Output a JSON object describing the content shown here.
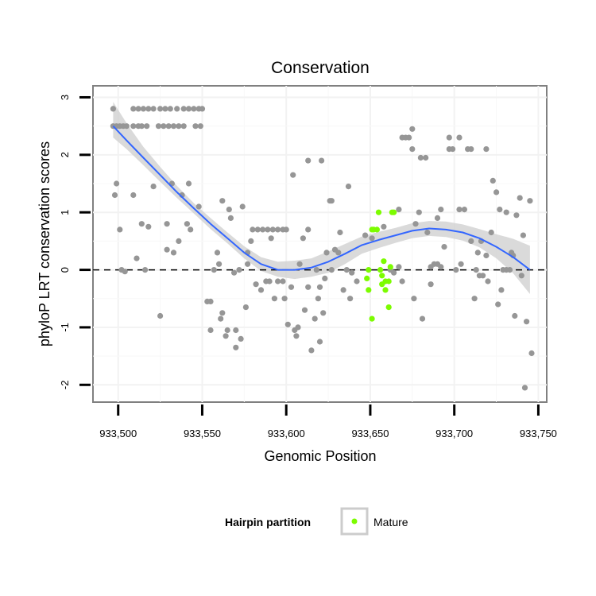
{
  "chart_data": {
    "type": "scatter",
    "title": "Conservation",
    "xlabel": "Genomic Position",
    "ylabel": "phyloP LRT conservation scores",
    "xlim": [
      933485,
      933755
    ],
    "ylim": [
      -2.3,
      3.2
    ],
    "x_ticks": [
      933500,
      933550,
      933600,
      933650,
      933700,
      933750
    ],
    "x_tick_labels": [
      "933,500",
      "933,550",
      "933,600",
      "933,650",
      "933,700",
      "933,750"
    ],
    "y_ticks": [
      -2,
      -1,
      0,
      1,
      2,
      3
    ],
    "y_tick_labels": [
      "-2",
      "-1",
      "0",
      "1",
      "2",
      "3"
    ],
    "reference_line": {
      "y": 0,
      "style": "dashed"
    },
    "legend": {
      "title": "Hairpin partition",
      "entries": [
        "Mature"
      ]
    },
    "colors": {
      "other": "#969696",
      "mature": "#7cfc00",
      "smooth": "#3366ff",
      "band": "#d3d3d3"
    },
    "series": [
      {
        "name": "Other",
        "color": "#969696",
        "points": [
          [
            933497,
            2.8
          ],
          [
            933497,
            2.5
          ],
          [
            933499,
            2.5
          ],
          [
            933501,
            2.5
          ],
          [
            933503,
            2.5
          ],
          [
            933505,
            2.5
          ],
          [
            933509,
            2.5
          ],
          [
            933512,
            2.5
          ],
          [
            933514,
            2.5
          ],
          [
            933517,
            2.5
          ],
          [
            933524,
            2.5
          ],
          [
            933527,
            2.5
          ],
          [
            933530,
            2.5
          ],
          [
            933533,
            2.5
          ],
          [
            933536,
            2.5
          ],
          [
            933539,
            2.5
          ],
          [
            933546,
            2.5
          ],
          [
            933549,
            2.5
          ],
          [
            933509,
            2.8
          ],
          [
            933512,
            2.8
          ],
          [
            933515,
            2.8
          ],
          [
            933518,
            2.8
          ],
          [
            933521,
            2.8
          ],
          [
            933525,
            2.8
          ],
          [
            933528,
            2.8
          ],
          [
            933531,
            2.8
          ],
          [
            933535,
            2.8
          ],
          [
            933539,
            2.8
          ],
          [
            933542,
            2.8
          ],
          [
            933545,
            2.8
          ],
          [
            933548,
            2.8
          ],
          [
            933550,
            2.8
          ],
          [
            933499,
            1.5
          ],
          [
            933498,
            1.3
          ],
          [
            933501,
            0.7
          ],
          [
            933502,
            0.0
          ],
          [
            933504,
            -0.03
          ],
          [
            933509,
            1.3
          ],
          [
            933511,
            0.2
          ],
          [
            933514,
            0.8
          ],
          [
            933516,
            0.0
          ],
          [
            933518,
            0.75
          ],
          [
            933521,
            1.45
          ],
          [
            933525,
            -0.8
          ],
          [
            933529,
            0.35
          ],
          [
            933529,
            0.8
          ],
          [
            933532,
            1.5
          ],
          [
            933533,
            0.3
          ],
          [
            933536,
            0.5
          ],
          [
            933538,
            1.3
          ],
          [
            933541,
            0.8
          ],
          [
            933542,
            1.5
          ],
          [
            933543,
            0.7
          ],
          [
            933548,
            1.1
          ],
          [
            933553,
            -0.55
          ],
          [
            933555,
            -0.55
          ],
          [
            933555,
            -1.05
          ],
          [
            933557,
            0.0
          ],
          [
            933559,
            0.3
          ],
          [
            933560,
            0.1
          ],
          [
            933561,
            -0.85
          ],
          [
            933562,
            1.2
          ],
          [
            933562,
            -0.75
          ],
          [
            933565,
            -1.05
          ],
          [
            933564,
            -1.15
          ],
          [
            933566,
            1.05
          ],
          [
            933567,
            0.9
          ],
          [
            933569,
            -0.05
          ],
          [
            933570,
            -1.35
          ],
          [
            933570,
            -1.05
          ],
          [
            933572,
            0.0
          ],
          [
            933574,
            1.1
          ],
          [
            933573,
            -1.2
          ],
          [
            933576,
            -0.65
          ],
          [
            933577,
            0.1
          ],
          [
            933577,
            0.3
          ],
          [
            933579,
            0.5
          ],
          [
            933580,
            0.7
          ],
          [
            933583,
            0.7
          ],
          [
            933586,
            0.7
          ],
          [
            933589,
            0.7
          ],
          [
            933592,
            0.7
          ],
          [
            933595,
            0.7
          ],
          [
            933598,
            0.7
          ],
          [
            933600,
            0.7
          ],
          [
            933591,
            0.55
          ],
          [
            933582,
            -0.25
          ],
          [
            933585,
            -0.35
          ],
          [
            933588,
            -0.2
          ],
          [
            933590,
            -0.2
          ],
          [
            933593,
            -0.5
          ],
          [
            933595,
            -0.2
          ],
          [
            933598,
            -0.2
          ],
          [
            933599,
            -0.5
          ],
          [
            933601,
            -0.95
          ],
          [
            933603,
            -0.3
          ],
          [
            933604,
            1.65
          ],
          [
            933605,
            -1.05
          ],
          [
            933606,
            -1.15
          ],
          [
            933607,
            -1.0
          ],
          [
            933608,
            0.1
          ],
          [
            933610,
            0.55
          ],
          [
            933611,
            -0.7
          ],
          [
            933613,
            0.7
          ],
          [
            933613,
            1.9
          ],
          [
            933613,
            -0.3
          ],
          [
            933615,
            -1.4
          ],
          [
            933617,
            -0.85
          ],
          [
            933618,
            0.0
          ],
          [
            933619,
            -0.5
          ],
          [
            933620,
            -1.25
          ],
          [
            933621,
            1.9
          ],
          [
            933620,
            -0.3
          ],
          [
            933622,
            -0.75
          ],
          [
            933623,
            -0.15
          ],
          [
            933624,
            0.3
          ],
          [
            933626,
            1.2
          ],
          [
            933627,
            1.2
          ],
          [
            933627,
            0.0
          ],
          [
            933629,
            0.35
          ],
          [
            933631,
            0.3
          ],
          [
            933632,
            0.65
          ],
          [
            933634,
            -0.35
          ],
          [
            933636,
            0.0
          ],
          [
            933637,
            1.45
          ],
          [
            933638,
            -0.5
          ],
          [
            933639,
            -0.05
          ],
          [
            933642,
            -0.2
          ],
          [
            933647,
            0.6
          ],
          [
            933651,
            0.55
          ],
          [
            933658,
            0.75
          ],
          [
            933662,
            0.0
          ],
          [
            933664,
            -0.05
          ],
          [
            933667,
            0.05
          ],
          [
            933667,
            1.05
          ],
          [
            933669,
            -0.2
          ],
          [
            933669,
            2.3
          ],
          [
            933671,
            2.3
          ],
          [
            933673,
            2.3
          ],
          [
            933675,
            2.45
          ],
          [
            933675,
            2.1
          ],
          [
            933676,
            -0.5
          ],
          [
            933677,
            0.8
          ],
          [
            933679,
            1.0
          ],
          [
            933680,
            1.95
          ],
          [
            933681,
            -0.85
          ],
          [
            933683,
            1.95
          ],
          [
            933684,
            0.65
          ],
          [
            933686,
            -0.25
          ],
          [
            933686,
            0.05
          ],
          [
            933688,
            0.1
          ],
          [
            933690,
            0.9
          ],
          [
            933690,
            0.1
          ],
          [
            933692,
            1.05
          ],
          [
            933692,
            0.05
          ],
          [
            933694,
            0.4
          ],
          [
            933697,
            2.3
          ],
          [
            933697,
            2.1
          ],
          [
            933699,
            2.1
          ],
          [
            933701,
            0.0
          ],
          [
            933703,
            2.3
          ],
          [
            933703,
            1.05
          ],
          [
            933704,
            0.1
          ],
          [
            933706,
            1.05
          ],
          [
            933708,
            2.1
          ],
          [
            933710,
            2.1
          ],
          [
            933710,
            0.5
          ],
          [
            933712,
            -0.5
          ],
          [
            933713,
            0.0
          ],
          [
            933714,
            0.3
          ],
          [
            933715,
            -0.1
          ],
          [
            933716,
            0.5
          ],
          [
            933717,
            -0.1
          ],
          [
            933719,
            2.1
          ],
          [
            933719,
            0.25
          ],
          [
            933720,
            -0.2
          ],
          [
            933722,
            0.65
          ],
          [
            933723,
            1.55
          ],
          [
            933725,
            1.35
          ],
          [
            933726,
            -0.6
          ],
          [
            933727,
            1.05
          ],
          [
            933728,
            -0.35
          ],
          [
            933729,
            0.0
          ],
          [
            933731,
            0.0
          ],
          [
            933731,
            1.0
          ],
          [
            933733,
            0.0
          ],
          [
            933734,
            0.3
          ],
          [
            933735,
            0.25
          ],
          [
            933736,
            -0.8
          ],
          [
            933737,
            0.95
          ],
          [
            933739,
            1.25
          ],
          [
            933740,
            -0.1
          ],
          [
            933741,
            0.6
          ],
          [
            933742,
            -2.05
          ],
          [
            933743,
            -0.9
          ],
          [
            933745,
            1.2
          ],
          [
            933746,
            -1.45
          ]
        ]
      },
      {
        "name": "Mature",
        "color": "#7cfc00",
        "points": [
          [
            933648,
            -0.15
          ],
          [
            933649,
            0.0
          ],
          [
            933649,
            -0.35
          ],
          [
            933651,
            -0.85
          ],
          [
            933651,
            0.7
          ],
          [
            933652,
            0.7
          ],
          [
            933654,
            0.7
          ],
          [
            933655,
            1.0
          ],
          [
            933656,
            0.0
          ],
          [
            933657,
            -0.1
          ],
          [
            933657,
            -0.25
          ],
          [
            933658,
            0.15
          ],
          [
            933659,
            -0.2
          ],
          [
            933659,
            -0.35
          ],
          [
            933661,
            -0.65
          ],
          [
            933661,
            -0.2
          ],
          [
            933662,
            0.05
          ],
          [
            933663,
            1.0
          ],
          [
            933664,
            1.0
          ]
        ]
      }
    ],
    "smooth_fit": {
      "color": "#3366ff",
      "x": [
        933497,
        933505,
        933515,
        933525,
        933535,
        933545,
        933555,
        933565,
        933575,
        933585,
        933595,
        933605,
        933615,
        933625,
        933635,
        933645,
        933655,
        933665,
        933675,
        933685,
        933695,
        933705,
        933715,
        933725,
        933735,
        933745
      ],
      "y": [
        2.5,
        2.25,
        1.95,
        1.65,
        1.35,
        1.07,
        0.8,
        0.55,
        0.3,
        0.1,
        0.0,
        0.0,
        0.04,
        0.14,
        0.28,
        0.43,
        0.52,
        0.6,
        0.68,
        0.72,
        0.7,
        0.65,
        0.55,
        0.4,
        0.22,
        0.0
      ],
      "lower": [
        2.3,
        2.1,
        1.82,
        1.53,
        1.25,
        0.98,
        0.71,
        0.46,
        0.2,
        -0.02,
        -0.12,
        -0.16,
        -0.12,
        -0.05,
        0.1,
        0.28,
        0.38,
        0.47,
        0.55,
        0.59,
        0.57,
        0.51,
        0.39,
        0.2,
        -0.06,
        -0.42
      ],
      "upper": [
        2.92,
        2.55,
        2.14,
        1.79,
        1.46,
        1.16,
        0.9,
        0.65,
        0.41,
        0.22,
        0.14,
        0.16,
        0.2,
        0.32,
        0.45,
        0.58,
        0.66,
        0.73,
        0.81,
        0.85,
        0.84,
        0.79,
        0.71,
        0.62,
        0.54,
        0.42
      ]
    }
  }
}
